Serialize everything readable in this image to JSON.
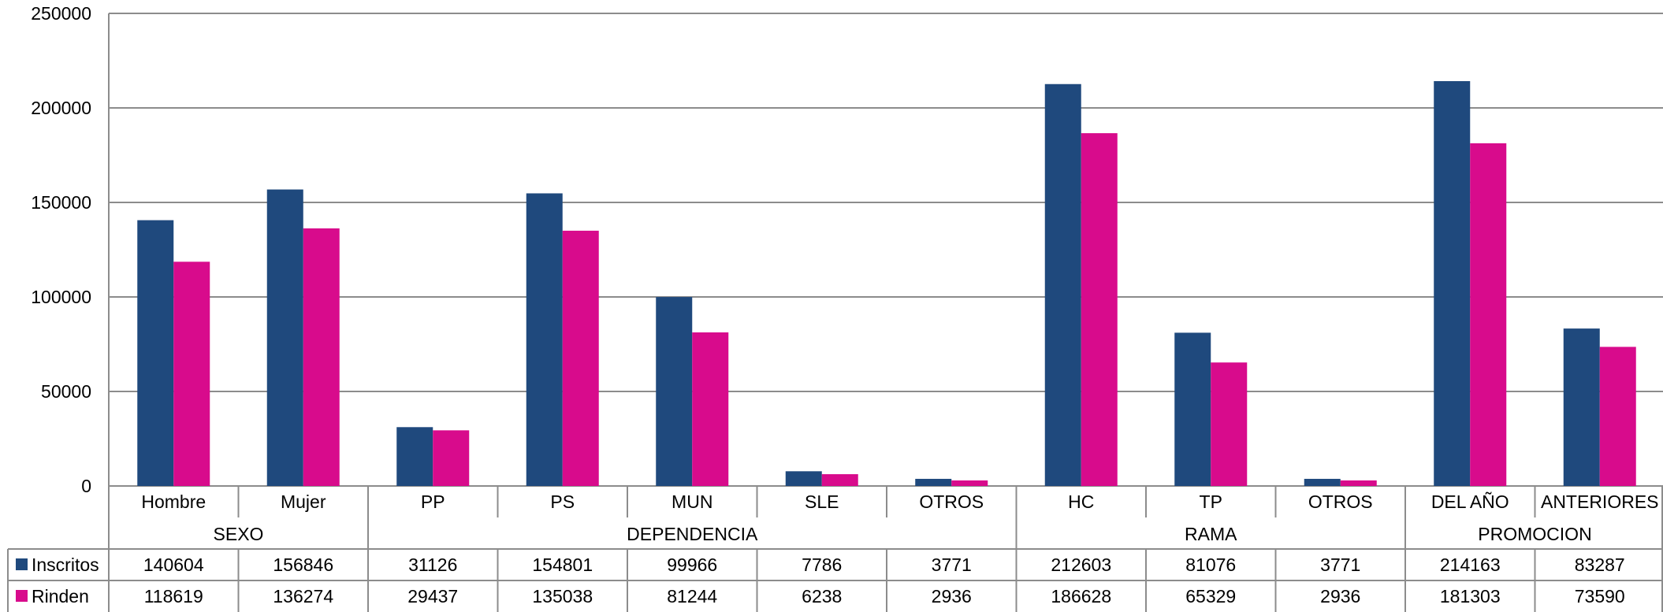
{
  "chart_data": {
    "type": "bar",
    "categories": [
      "Hombre",
      "Mujer",
      "PP",
      "PS",
      "MUN",
      "SLE",
      "OTROS",
      "HC",
      "TP",
      "OTROS",
      "DEL AÑO",
      "ANTERIORES"
    ],
    "groups": [
      {
        "label": "SEXO",
        "count": 2
      },
      {
        "label": "DEPENDENCIA",
        "count": 5
      },
      {
        "label": "RAMA",
        "count": 3
      },
      {
        "label": "PROMOCION",
        "count": 2
      }
    ],
    "series": [
      {
        "name": "Inscritos",
        "color": "#1f497d",
        "values": [
          140604,
          156846,
          31126,
          154801,
          99966,
          7786,
          3771,
          212603,
          81076,
          3771,
          214163,
          83287
        ]
      },
      {
        "name": "Rinden",
        "color": "#d80b8c",
        "values": [
          118619,
          136274,
          29437,
          135038,
          81244,
          6238,
          2936,
          186628,
          65329,
          2936,
          181303,
          73590
        ]
      }
    ],
    "ylim": [
      0,
      250000
    ],
    "yticks": [
      "0",
      "50000",
      "100000",
      "150000",
      "200000",
      "250000"
    ],
    "grid": true,
    "legend": "data-table",
    "data_table": true
  }
}
